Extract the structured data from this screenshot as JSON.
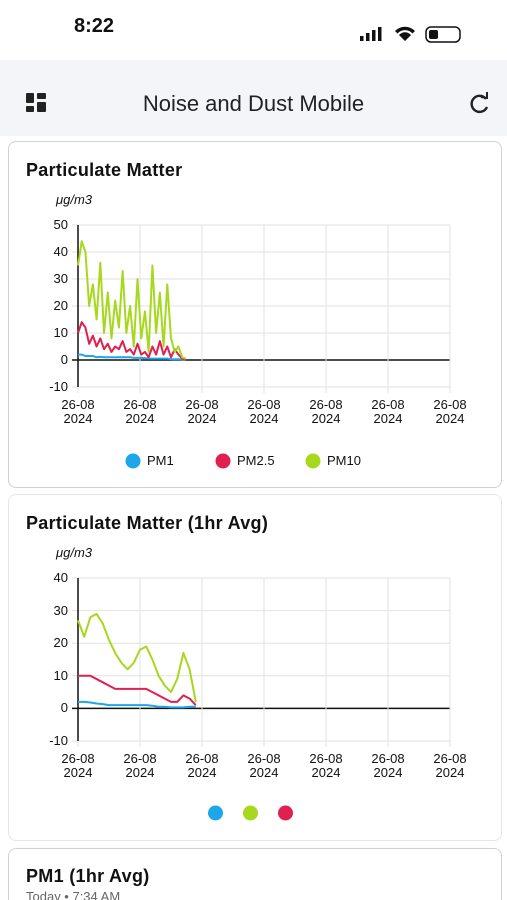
{
  "status_bar": {
    "time": "8:22"
  },
  "header": {
    "title": "Noise and Dust Mobile"
  },
  "chart_data": [
    {
      "type": "line",
      "title": "Particulate Matter",
      "y_label": "μg/m3",
      "x": [
        0,
        0.06,
        0.12,
        0.18,
        0.24,
        0.3,
        0.36,
        0.42,
        0.48,
        0.54,
        0.6,
        0.66,
        0.72,
        0.78,
        0.84,
        0.9,
        0.96,
        1.02,
        1.08,
        1.14,
        1.2,
        1.26,
        1.32,
        1.38,
        1.44,
        1.5,
        1.56,
        1.62,
        1.68,
        1.74
      ],
      "series": [
        {
          "name": "PM1",
          "color": "#1ea7e8",
          "values": [
            2,
            2,
            1.5,
            1.5,
            1.5,
            1,
            1.2,
            1,
            1,
            1,
            1,
            1,
            1,
            1,
            1,
            0.8,
            0.8,
            0.8,
            0.7,
            0.5,
            0.5,
            0.5,
            0.5,
            0.5,
            0.5,
            0.3,
            0.3,
            0.3,
            0.2,
            0.2
          ]
        },
        {
          "name": "PM2.5",
          "color": "#e0204f",
          "values": [
            10,
            14,
            12,
            6,
            9,
            5,
            8,
            4,
            6,
            3,
            5,
            4,
            7,
            3,
            4,
            2,
            6,
            2,
            3,
            1,
            5,
            2,
            7,
            2,
            5,
            1,
            4,
            2,
            0.5,
            0.2
          ]
        },
        {
          "name": "PM10",
          "color": "#a6d81e",
          "values": [
            35,
            44,
            40,
            20,
            28,
            15,
            36,
            10,
            25,
            8,
            22,
            12,
            33,
            10,
            20,
            5,
            30,
            8,
            18,
            3,
            35,
            10,
            25,
            5,
            28,
            8,
            3,
            5,
            1,
            0.5
          ]
        }
      ],
      "xlim": [
        0,
        6
      ],
      "xticks": [
        {
          "value": 0,
          "label": "26-08\n2024"
        },
        {
          "value": 1,
          "label": "26-08\n2024"
        },
        {
          "value": 2,
          "label": "26-08\n2024"
        },
        {
          "value": 3,
          "label": "26-08\n2024"
        },
        {
          "value": 4,
          "label": "26-08\n2024"
        },
        {
          "value": 5,
          "label": "26-08\n2024"
        },
        {
          "value": 6,
          "label": "26-08\n2024"
        }
      ],
      "ylim": [
        -10,
        50
      ],
      "yticks": [
        -10,
        0,
        10,
        20,
        30,
        40,
        50
      ],
      "grid": true
    },
    {
      "type": "line",
      "title": "Particulate Matter (1hr Avg)",
      "y_label": "μg/m3",
      "x": [
        0,
        0.1,
        0.2,
        0.3,
        0.4,
        0.5,
        0.6,
        0.7,
        0.8,
        0.9,
        1,
        1.1,
        1.2,
        1.3,
        1.4,
        1.5,
        1.6,
        1.7,
        1.8,
        1.9
      ],
      "series": [
        {
          "color": "#1ea7e8",
          "values": [
            2,
            2,
            1.8,
            1.5,
            1.3,
            1,
            1,
            1,
            1,
            1,
            1,
            1,
            0.8,
            0.5,
            0.5,
            0.3,
            0.3,
            0.3,
            0.5,
            0.5
          ]
        },
        {
          "color": "#a6d81e",
          "values": [
            27,
            22,
            28,
            29,
            26,
            21,
            17,
            14,
            12,
            14,
            18,
            19,
            15,
            10,
            7,
            5,
            9,
            17,
            12,
            2
          ]
        },
        {
          "color": "#e0204f",
          "values": [
            10,
            10,
            10,
            9,
            8,
            7,
            6,
            6,
            6,
            6,
            6,
            6,
            5,
            4,
            3,
            2,
            2,
            4,
            3,
            1
          ]
        }
      ],
      "xlim": [
        0,
        6
      ],
      "xticks": [
        {
          "value": 0,
          "label": "26-08\n2024"
        },
        {
          "value": 1,
          "label": "26-08\n2024"
        },
        {
          "value": 2,
          "label": "26-08\n2024"
        },
        {
          "value": 3,
          "label": "26-08\n2024"
        },
        {
          "value": 4,
          "label": "26-08\n2024"
        },
        {
          "value": 5,
          "label": "26-08\n2024"
        },
        {
          "value": 6,
          "label": "26-08\n2024"
        }
      ],
      "ylim": [
        -10,
        40
      ],
      "yticks": [
        -10,
        0,
        10,
        20,
        30,
        40
      ],
      "grid": true
    }
  ],
  "card3": {
    "title": "PM1 (1hr Avg)",
    "subtitle": "Today • 7:34 AM"
  }
}
